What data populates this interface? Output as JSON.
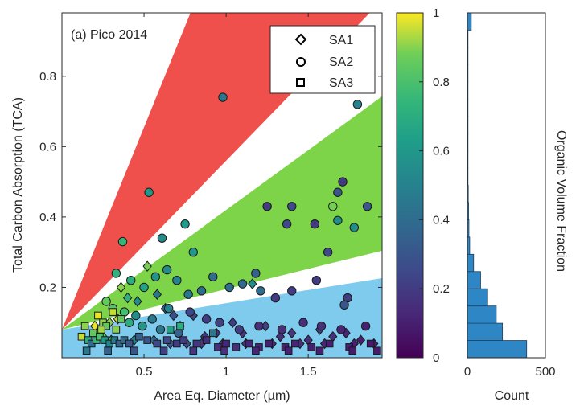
{
  "chart_data": [
    {
      "type": "scatter",
      "panel_label": "(a) Pico 2014",
      "xlabel": "Area Eq. Diameter (µm)",
      "ylabel": "Total Carbon Absorption (TCA)",
      "xlim": [
        0,
        1.95
      ],
      "ylim": [
        0,
        0.98
      ],
      "x_ticks": [
        0.5,
        1,
        1.5
      ],
      "x_tick_labels": [
        "0.5",
        "1",
        "1.5"
      ],
      "y_ticks": [
        0.2,
        0.4,
        0.6,
        0.8
      ],
      "y_tick_labels": [
        "0.2",
        "0.4",
        "0.6",
        "0.8"
      ],
      "grid": false,
      "legend": {
        "position": "top-right",
        "entries": [
          {
            "label": "SA1",
            "marker": "diamond"
          },
          {
            "label": "SA2",
            "marker": "circle"
          },
          {
            "label": "SA3",
            "marker": "square"
          }
        ]
      },
      "regions": [
        {
          "color": "#f0504c",
          "slope_range": [
            0.48,
            1.15
          ],
          "intercept": 0.08
        },
        {
          "color": "#7ed448",
          "slope_range": [
            0.115,
            0.34
          ],
          "intercept": 0.08
        },
        {
          "color": "#7ecbee",
          "slope_range": [
            0.0,
            0.075
          ],
          "intercept": 0.08
        }
      ],
      "series": [
        {
          "name": "SA1",
          "marker": "diamond",
          "points": [
            [
              0.29,
              0.1,
              0.9
            ],
            [
              0.34,
              0.11,
              0.95
            ],
            [
              0.36,
              0.2,
              0.9
            ],
            [
              0.4,
              0.17,
              0.72
            ],
            [
              0.46,
              0.16,
              0.55
            ],
            [
              0.52,
              0.26,
              0.88
            ],
            [
              0.58,
              0.18,
              0.45
            ],
            [
              0.63,
              0.14,
              0.35
            ],
            [
              0.68,
              0.12,
              0.28
            ],
            [
              0.72,
              0.09,
              0.22
            ],
            [
              0.8,
              0.12,
              0.25
            ],
            [
              0.87,
              0.06,
              0.18
            ],
            [
              0.94,
              0.07,
              0.15
            ],
            [
              1.04,
              0.1,
              0.2
            ],
            [
              1.1,
              0.07,
              0.18
            ],
            [
              1.16,
              0.21,
              0.55
            ],
            [
              1.24,
              0.09,
              0.22
            ],
            [
              1.33,
              0.06,
              0.15
            ],
            [
              1.4,
              0.07,
              0.18
            ],
            [
              1.5,
              0.05,
              0.15
            ],
            [
              1.57,
              0.08,
              0.2
            ],
            [
              1.65,
              0.06,
              0.15
            ],
            [
              1.73,
              0.07,
              0.12
            ],
            [
              1.82,
              0.05,
              0.1
            ],
            [
              0.2,
              0.09,
              0.98
            ],
            [
              0.22,
              0.07,
              0.9
            ],
            [
              0.25,
              0.06,
              0.85
            ],
            [
              0.3,
              0.05,
              0.8
            ],
            [
              0.44,
              0.05,
              0.5
            ],
            [
              0.56,
              0.05,
              0.4
            ],
            [
              0.66,
              0.04,
              0.3
            ],
            [
              0.76,
              0.04,
              0.25
            ],
            [
              0.85,
              0.04,
              0.2
            ],
            [
              0.98,
              0.04,
              0.15
            ],
            [
              1.12,
              0.04,
              0.18
            ],
            [
              1.28,
              0.04,
              0.15
            ],
            [
              1.45,
              0.04,
              0.15
            ],
            [
              1.6,
              0.04,
              0.12
            ],
            [
              1.78,
              0.04,
              0.1
            ],
            [
              1.9,
              0.04,
              0.1
            ]
          ]
        },
        {
          "name": "SA2",
          "marker": "circle",
          "points": [
            [
              0.98,
              0.74,
              0.45
            ],
            [
              1.8,
              0.72,
              0.5
            ],
            [
              0.53,
              0.47,
              0.6
            ],
            [
              0.37,
              0.33,
              0.75
            ],
            [
              0.61,
              0.34,
              0.55
            ],
            [
              0.75,
              0.38,
              0.62
            ],
            [
              0.8,
              0.3,
              0.6
            ],
            [
              1.37,
              0.38,
              0.25
            ],
            [
              1.54,
              0.38,
              0.2
            ],
            [
              1.25,
              0.43,
              0.2
            ],
            [
              1.4,
              0.43,
              0.25
            ],
            [
              1.65,
              0.43,
              0.88
            ],
            [
              1.68,
              0.39,
              0.55
            ],
            [
              1.78,
              0.37,
              0.55
            ],
            [
              1.86,
              0.43,
              0.3
            ],
            [
              1.71,
              0.5,
              0.2
            ],
            [
              1.68,
              0.47,
              0.3
            ],
            [
              1.62,
              0.3,
              0.25
            ],
            [
              0.33,
              0.24,
              0.72
            ],
            [
              0.42,
              0.22,
              0.7
            ],
            [
              0.5,
              0.2,
              0.65
            ],
            [
              0.57,
              0.23,
              0.58
            ],
            [
              0.64,
              0.25,
              0.55
            ],
            [
              0.7,
              0.22,
              0.5
            ],
            [
              0.77,
              0.18,
              0.45
            ],
            [
              0.85,
              0.19,
              0.4
            ],
            [
              0.92,
              0.23,
              0.4
            ],
            [
              1.02,
              0.2,
              0.4
            ],
            [
              1.1,
              0.21,
              0.4
            ],
            [
              1.18,
              0.24,
              0.35
            ],
            [
              1.21,
              0.19,
              0.4
            ],
            [
              1.3,
              0.17,
              0.2
            ],
            [
              1.4,
              0.19,
              0.2
            ],
            [
              1.55,
              0.22,
              0.2
            ],
            [
              1.74,
              0.17,
              0.2
            ],
            [
              1.72,
              0.15,
              0.3
            ],
            [
              0.45,
              0.12,
              0.55
            ],
            [
              0.55,
              0.11,
              0.45
            ],
            [
              0.65,
              0.14,
              0.5
            ],
            [
              0.78,
              0.13,
              0.25
            ],
            [
              0.88,
              0.11,
              0.2
            ],
            [
              0.96,
              0.1,
              0.22
            ],
            [
              1.08,
              0.08,
              0.2
            ],
            [
              1.2,
              0.09,
              0.15
            ],
            [
              1.34,
              0.08,
              0.15
            ],
            [
              1.47,
              0.1,
              0.15
            ],
            [
              1.58,
              0.09,
              0.15
            ],
            [
              1.7,
              0.08,
              0.12
            ],
            [
              1.85,
              0.09,
              0.1
            ],
            [
              0.27,
              0.16,
              0.85
            ],
            [
              0.31,
              0.14,
              0.82
            ],
            [
              0.38,
              0.13,
              0.78
            ],
            [
              0.41,
              0.1,
              0.7
            ],
            [
              0.49,
              0.09,
              0.6
            ],
            [
              0.6,
              0.08,
              0.45
            ],
            [
              0.71,
              0.07,
              0.35
            ]
          ]
        },
        {
          "name": "SA3",
          "marker": "square",
          "points": [
            [
              0.22,
              0.12,
              0.98
            ],
            [
              0.25,
              0.1,
              0.9
            ],
            [
              0.27,
              0.09,
              0.85
            ],
            [
              0.31,
              0.13,
              0.95
            ],
            [
              0.33,
              0.08,
              0.9
            ],
            [
              0.36,
              0.11,
              0.85
            ],
            [
              0.24,
              0.08,
              0.92
            ],
            [
              0.19,
              0.07,
              0.85
            ],
            [
              0.12,
              0.06,
              0.95
            ],
            [
              0.14,
              0.09,
              0.9
            ],
            [
              0.16,
              0.05,
              0.7
            ],
            [
              0.18,
              0.04,
              0.4
            ],
            [
              0.21,
              0.05,
              0.75
            ],
            [
              0.23,
              0.06,
              0.8
            ],
            [
              0.26,
              0.05,
              0.6
            ],
            [
              0.29,
              0.04,
              0.5
            ],
            [
              0.32,
              0.05,
              0.45
            ],
            [
              0.35,
              0.04,
              0.35
            ],
            [
              0.38,
              0.05,
              0.4
            ],
            [
              0.41,
              0.04,
              0.3
            ],
            [
              0.47,
              0.06,
              0.35
            ],
            [
              0.52,
              0.05,
              0.3
            ],
            [
              0.58,
              0.04,
              0.25
            ],
            [
              0.64,
              0.05,
              0.25
            ],
            [
              0.7,
              0.04,
              0.2
            ],
            [
              0.74,
              0.05,
              0.2
            ],
            [
              0.82,
              0.04,
              0.18
            ],
            [
              0.88,
              0.05,
              0.15
            ],
            [
              0.95,
              0.03,
              0.15
            ],
            [
              1.0,
              0.04,
              0.12
            ],
            [
              1.06,
              0.03,
              0.15
            ],
            [
              1.14,
              0.04,
              0.12
            ],
            [
              1.2,
              0.03,
              0.12
            ],
            [
              1.26,
              0.04,
              0.1
            ],
            [
              1.36,
              0.03,
              0.1
            ],
            [
              1.42,
              0.04,
              0.12
            ],
            [
              1.52,
              0.03,
              0.1
            ],
            [
              1.63,
              0.04,
              0.1
            ],
            [
              1.75,
              0.03,
              0.1
            ],
            [
              1.88,
              0.04,
              0.08
            ],
            [
              0.66,
              0.08,
              0.65
            ],
            [
              0.72,
              0.09,
              0.7
            ],
            [
              0.92,
              0.07,
              0.45
            ],
            [
              0.15,
              0.02,
              0.45
            ],
            [
              0.28,
              0.02,
              0.35
            ],
            [
              0.44,
              0.02,
              0.3
            ],
            [
              0.62,
              0.02,
              0.22
            ],
            [
              0.8,
              0.02,
              0.18
            ],
            [
              0.99,
              0.02,
              0.15
            ],
            [
              1.18,
              0.02,
              0.12
            ],
            [
              1.38,
              0.02,
              0.1
            ],
            [
              1.57,
              0.02,
              0.1
            ],
            [
              1.77,
              0.02,
              0.08
            ],
            [
              1.92,
              0.02,
              0.08
            ]
          ]
        }
      ],
      "point_value_order": [
        "x",
        "y",
        "organic_volume_fraction"
      ]
    },
    {
      "type": "colorbar",
      "label": "Organic Volume Fraction",
      "range": [
        0,
        1
      ],
      "tick_labels": [
        "0",
        "0.2",
        "0.4",
        "0.6",
        "0.8",
        "1"
      ],
      "colormap": [
        "#440154",
        "#3b528b",
        "#21918c",
        "#5ec962",
        "#fde725"
      ]
    },
    {
      "type": "bar",
      "orientation": "horizontal",
      "xlabel": "Count",
      "x_tick_labels": [
        "0",
        "500"
      ],
      "xlim": [
        0,
        500
      ],
      "bin_edges": [
        0,
        0.05,
        0.1,
        0.15,
        0.2,
        0.25,
        0.3,
        0.35,
        0.4,
        0.45,
        0.5,
        0.55,
        0.6,
        0.65,
        0.7,
        0.75,
        0.8,
        0.85,
        0.9,
        0.95,
        1.0
      ],
      "counts": [
        380,
        225,
        185,
        130,
        85,
        40,
        15,
        10,
        8,
        6,
        4,
        3,
        3,
        2,
        3,
        2,
        3,
        2,
        3,
        25
      ],
      "color": "#2f86c5"
    }
  ],
  "colors": {
    "red_region": "#f0504c",
    "green_region": "#7ed448",
    "blue_region": "#7ecbee",
    "histogram_bar": "#2f86c5"
  }
}
